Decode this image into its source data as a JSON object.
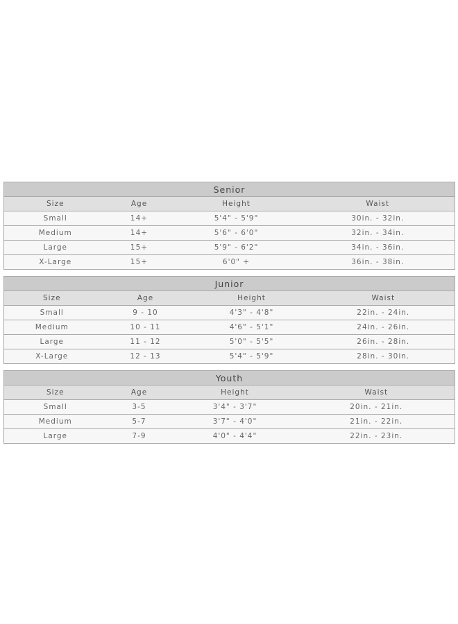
{
  "tables": [
    {
      "title": "Senior",
      "headers": [
        "Size",
        "Age",
        "Height",
        "Waist"
      ],
      "rows": [
        [
          "Small",
          "14+",
          "5'4\" - 5'9\"",
          "30in. - 32in."
        ],
        [
          "Medium",
          "14+",
          "5'6\" - 6'0\"",
          "32in. - 34in."
        ],
        [
          "Large",
          "15+",
          "5'9\" - 6'2\"",
          "34in. - 36in."
        ],
        [
          "X-Large",
          "15+",
          "6'0\" +",
          "36in. - 38in."
        ]
      ]
    },
    {
      "title": "Junior",
      "headers": [
        "Size",
        "Age",
        "Height",
        "Waist"
      ],
      "rows": [
        [
          "Small",
          "9 - 10",
          "4'3\" - 4'8\"",
          "22in. - 24in."
        ],
        [
          "Medium",
          "10 - 11",
          "4'6\" - 5'1\"",
          "24in. - 26in."
        ],
        [
          "Large",
          "11 - 12",
          "5'0\" - 5'5\"",
          "26in. - 28in."
        ],
        [
          "X-Large",
          "12 - 13",
          "5'4\" - 5'9\"",
          "28in. - 30in."
        ]
      ]
    },
    {
      "title": "Youth",
      "headers": [
        "Size",
        "Age",
        "Height",
        "Waist"
      ],
      "rows": [
        [
          "Small",
          "3-5",
          "3'4\" - 3'7\"",
          "20in. - 21in."
        ],
        [
          "Medium",
          "5-7",
          "3'7\" - 4'0\"",
          "21in. - 22in."
        ],
        [
          "Large",
          "7-9",
          "4'0\" - 4'4\"",
          "22in. - 23in."
        ]
      ]
    }
  ]
}
